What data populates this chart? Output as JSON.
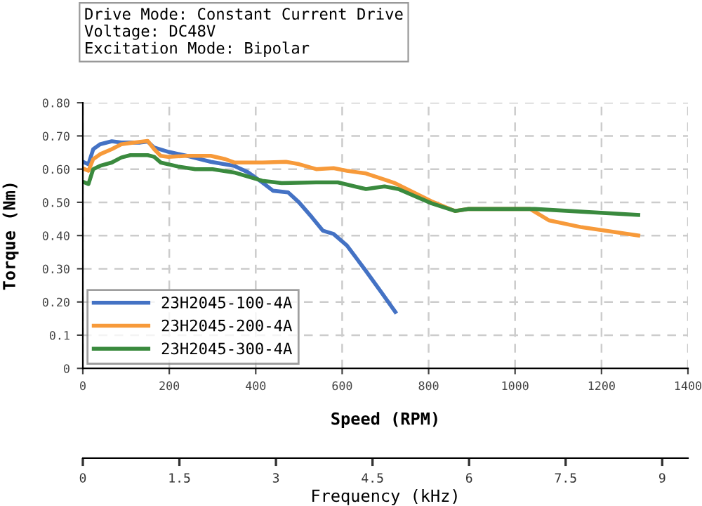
{
  "chart_data": {
    "type": "line",
    "annotations": [
      "Drive Mode: Constant Current Drive\nVoltage: DC48V\nExcitation Mode: Bipolar"
    ],
    "xlabel": "Speed (RPM)",
    "ylabel": "Torque (Nm)",
    "x2label": "Frequency (kHz)",
    "xlim": [
      0,
      1400
    ],
    "xticks": [
      0,
      200,
      400,
      600,
      800,
      1000,
      1200,
      1400
    ],
    "ylim": [
      0,
      0.8
    ],
    "yticks": [
      {
        "value": 0,
        "label": "0"
      },
      {
        "value": 0.1,
        "label": "0.1"
      },
      {
        "value": 0.2,
        "label": "0.20"
      },
      {
        "value": 0.3,
        "label": "0.30"
      },
      {
        "value": 0.4,
        "label": "0.40"
      },
      {
        "value": 0.5,
        "label": "0.50"
      },
      {
        "value": 0.6,
        "label": "0.60"
      },
      {
        "value": 0.7,
        "label": "0.70"
      },
      {
        "value": 0.8,
        "label": "0.80"
      }
    ],
    "x2lim": [
      0,
      9.4
    ],
    "x2ticks": [
      0,
      1.5,
      3,
      4.5,
      6,
      7.5,
      9
    ],
    "grid": true,
    "legend": "bottom left",
    "marker": "none",
    "line_style": "solid",
    "series": [
      {
        "name": "23H2045-100-4A",
        "color": "#4472c4",
        "x": [
          4,
          13,
          24,
          40,
          67,
          89,
          133,
          150,
          165,
          198,
          241,
          296,
          350,
          383,
          415,
          440,
          475,
          500,
          530,
          555,
          580,
          611,
          654,
          690,
          723
        ],
        "values": [
          0.62,
          0.615,
          0.66,
          0.675,
          0.684,
          0.68,
          0.68,
          0.683,
          0.665,
          0.652,
          0.64,
          0.622,
          0.61,
          0.59,
          0.56,
          0.535,
          0.53,
          0.5,
          0.455,
          0.415,
          0.405,
          0.37,
          0.295,
          0.23,
          0.17
        ]
      },
      {
        "name": "23H2045-200-4A",
        "color": "#f79a3a",
        "x": [
          4,
          13,
          24,
          40,
          67,
          89,
          120,
          150,
          165,
          180,
          198,
          241,
          296,
          330,
          350,
          415,
          470,
          500,
          540,
          580,
          611,
          655,
          720,
          807,
          861,
          893,
          1035,
          1078,
          1154,
          1285
        ],
        "values": [
          0.6,
          0.595,
          0.63,
          0.645,
          0.66,
          0.675,
          0.68,
          0.685,
          0.66,
          0.64,
          0.637,
          0.64,
          0.64,
          0.63,
          0.62,
          0.62,
          0.622,
          0.615,
          0.6,
          0.603,
          0.595,
          0.587,
          0.559,
          0.503,
          0.474,
          0.48,
          0.48,
          0.446,
          0.425,
          0.4
        ]
      },
      {
        "name": "23H2045-300-4A",
        "color": "#3a8a3e",
        "x": [
          4,
          13,
          24,
          40,
          67,
          89,
          110,
          150,
          165,
          180,
          220,
          260,
          300,
          350,
          415,
          460,
          540,
          590,
          655,
          698,
          730,
          807,
          861,
          893,
          1046,
          1285
        ],
        "values": [
          0.56,
          0.555,
          0.6,
          0.61,
          0.62,
          0.635,
          0.642,
          0.642,
          0.637,
          0.62,
          0.608,
          0.6,
          0.6,
          0.59,
          0.565,
          0.558,
          0.56,
          0.56,
          0.54,
          0.548,
          0.54,
          0.497,
          0.474,
          0.48,
          0.48,
          0.462
        ]
      }
    ]
  }
}
